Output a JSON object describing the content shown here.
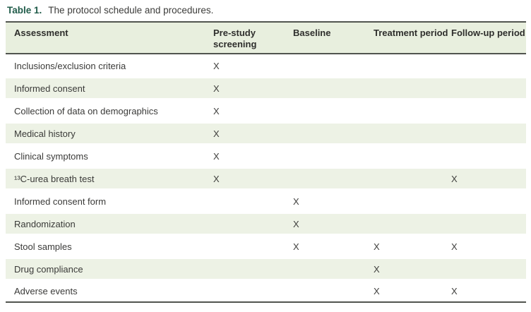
{
  "colors": {
    "caption_green": "#215c4a",
    "header_bg": "#e8efde",
    "stripe_bg": "#edf2e5",
    "rule_dark": "#51554f",
    "text_dark": "#353533"
  },
  "caption": {
    "label": "Table 1.",
    "text": "The protocol schedule and procedures."
  },
  "table": {
    "headers": [
      "Assessment",
      "Pre-study screening",
      "Baseline",
      "Treatment period",
      "Follow-up period"
    ],
    "mark_symbol": "X",
    "rows": [
      {
        "assessment": "Inclusions/exclusion criteria",
        "marks": [
          "X",
          "",
          "",
          ""
        ]
      },
      {
        "assessment": "Informed consent",
        "marks": [
          "X",
          "",
          "",
          ""
        ]
      },
      {
        "assessment": "Collection of data on demographics",
        "marks": [
          "X",
          "",
          "",
          ""
        ]
      },
      {
        "assessment": "Medical history",
        "marks": [
          "X",
          "",
          "",
          ""
        ]
      },
      {
        "assessment": "Clinical symptoms",
        "marks": [
          "X",
          "",
          "",
          ""
        ]
      },
      {
        "assessment": "¹³C-urea breath test",
        "marks": [
          "X",
          "",
          "",
          "X"
        ]
      },
      {
        "assessment": "Informed consent form",
        "marks": [
          "",
          "X",
          "",
          ""
        ]
      },
      {
        "assessment": "Randomization",
        "marks": [
          "",
          "X",
          "",
          ""
        ]
      },
      {
        "assessment": "Stool samples",
        "marks": [
          "",
          "X",
          "X",
          "X"
        ]
      },
      {
        "assessment": "Drug compliance",
        "marks": [
          "",
          "",
          "X",
          ""
        ]
      },
      {
        "assessment": "Adverse events",
        "marks": [
          "",
          "",
          "X",
          "X"
        ]
      }
    ]
  }
}
